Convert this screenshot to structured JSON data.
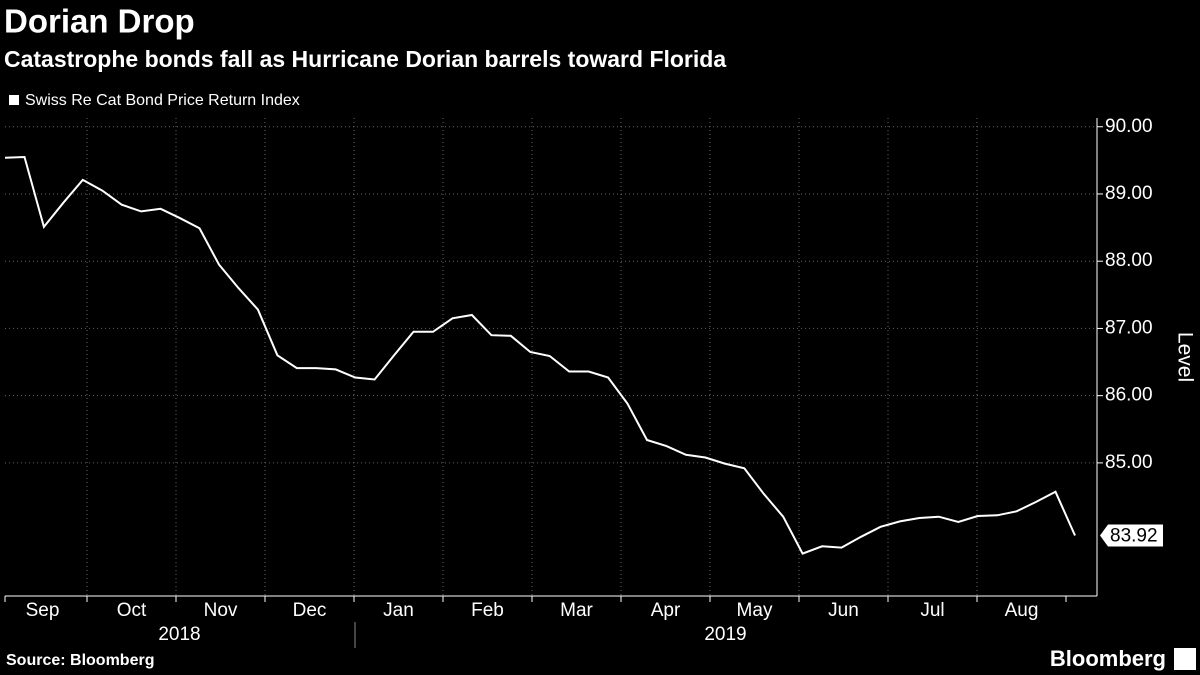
{
  "chart_data": {
    "type": "line",
    "title": "Dorian Drop",
    "subtitle": "Catastrophe bonds fall as Hurricane Dorian barrels toward Florida",
    "y_axis_label": "Level",
    "source": "Source: Bloomberg",
    "brand": "Bloomberg",
    "months": [
      "Sep",
      "Oct",
      "Nov",
      "Dec",
      "Jan",
      "Feb",
      "Mar",
      "Apr",
      "May",
      "Jun",
      "Jul",
      "Aug"
    ],
    "years": [
      "2018",
      "2019"
    ],
    "categories": [
      null,
      null,
      null,
      null,
      null,
      null,
      null,
      null,
      null,
      null,
      null,
      null,
      null,
      null,
      null,
      null,
      null,
      null,
      null,
      null,
      null,
      null,
      null,
      null,
      null,
      null,
      null,
      null,
      null,
      null,
      null,
      null,
      null,
      null,
      null,
      null,
      null,
      null,
      null,
      null,
      null,
      null,
      null,
      null,
      null,
      null,
      null,
      null,
      null,
      null,
      null,
      null,
      null,
      null,
      null,
      null
    ],
    "series": [
      {
        "name": "Swiss Re Cat Bond Price Return Index",
        "color": "#ffffff",
        "values": [
          89.54,
          89.55,
          88.51,
          88.87,
          89.21,
          89.05,
          88.84,
          88.74,
          88.78,
          88.64,
          88.49,
          87.95,
          87.6,
          87.28,
          86.6,
          86.41,
          86.41,
          86.39,
          86.27,
          86.24,
          86.6,
          86.95,
          86.95,
          87.15,
          87.2,
          86.9,
          86.89,
          86.65,
          86.59,
          86.36,
          86.36,
          86.27,
          85.88,
          85.34,
          85.25,
          85.12,
          85.08,
          84.99,
          84.92,
          84.54,
          84.2,
          83.65,
          83.76,
          83.74,
          83.9,
          84.05,
          84.13,
          84.18,
          84.2,
          84.12,
          84.21,
          84.22,
          84.28,
          84.42,
          84.57,
          83.92
        ]
      }
    ],
    "ylim": [
      83.02,
      90.13
    ],
    "yticks": [
      {
        "value": 85,
        "label": "85.00"
      },
      {
        "value": 86,
        "label": "86.00"
      },
      {
        "value": 87,
        "label": "87.00"
      },
      {
        "value": 88,
        "label": "88.00"
      },
      {
        "value": 89,
        "label": "89.00"
      },
      {
        "value": 90,
        "label": "90.00"
      }
    ],
    "grid": true,
    "background": "#000000"
  }
}
